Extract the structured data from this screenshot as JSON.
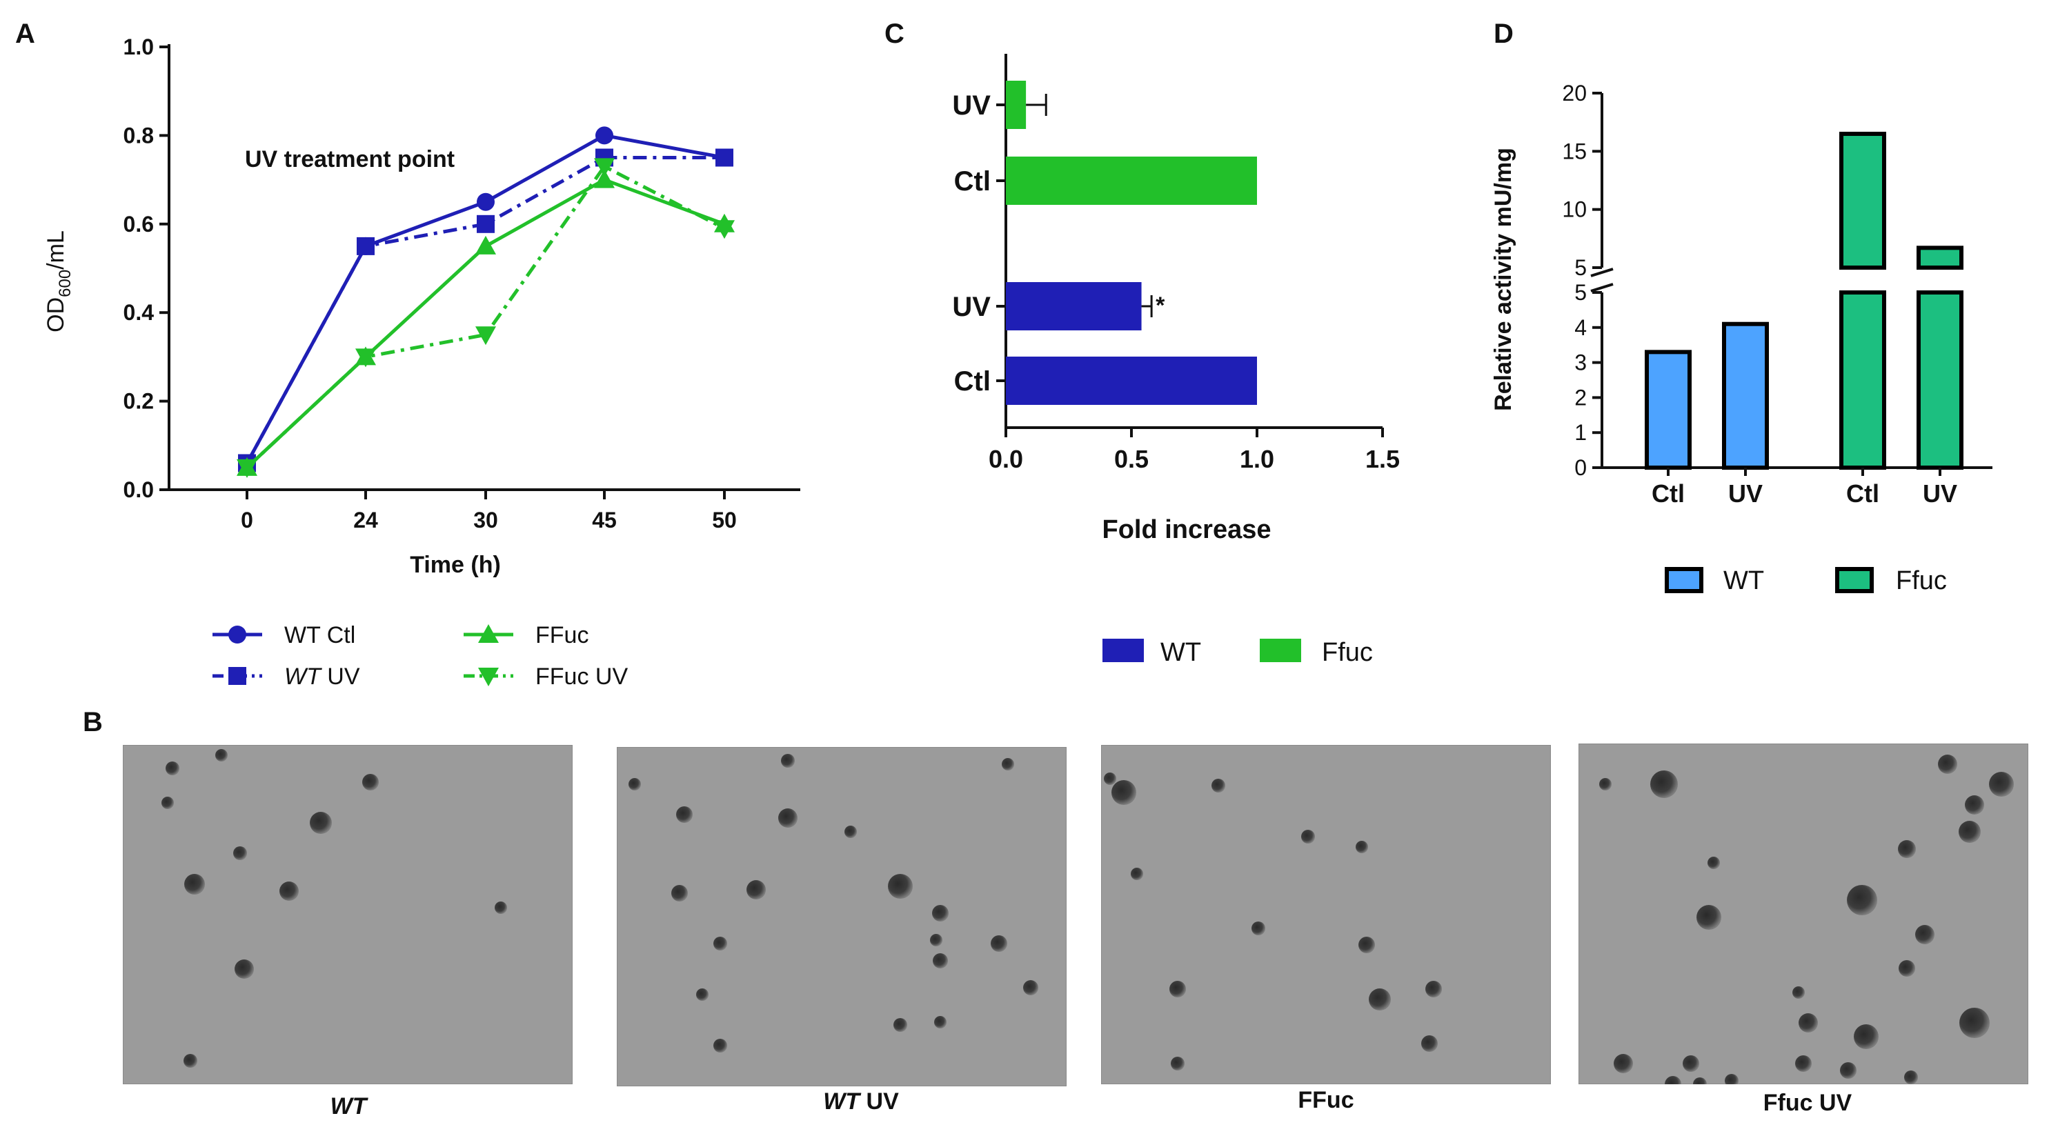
{
  "panels": {
    "A": "A",
    "B": "B",
    "C": "C",
    "D": "D"
  },
  "colors": {
    "wt_dark_blue": "#1f1fb5",
    "ffuc_green": "#22c02a",
    "d_wt_blue": "#4da3ff",
    "d_ffuc_green": "#1cbf80"
  },
  "chart_data": [
    {
      "id": "A",
      "type": "line",
      "title": "",
      "xlabel": "Time (h)",
      "ylabel_main": "OD",
      "ylabel_sub": "600",
      "ylabel_tail": "/mL",
      "annotation": "UV treatment point",
      "categories": [
        "0",
        "24",
        "30",
        "45",
        "50"
      ],
      "ylim": [
        0,
        1.0
      ],
      "yticks": [
        "0.0",
        "0.2",
        "0.4",
        "0.6",
        "0.8",
        "1.0"
      ],
      "series": [
        {
          "name": "WT Ctl",
          "values": [
            0.06,
            0.55,
            0.65,
            0.8,
            0.75
          ],
          "color": "#1f1fb5",
          "marker": "circle",
          "dash": "solid"
        },
        {
          "name": "WT UV",
          "name_italic": "WT",
          "name_rest": " UV",
          "values": [
            0.06,
            0.55,
            0.6,
            0.75,
            0.75
          ],
          "color": "#1f1fb5",
          "marker": "square",
          "dash": "dashdot"
        },
        {
          "name": "FFuc",
          "values": [
            0.05,
            0.3,
            0.55,
            0.7,
            0.6
          ],
          "color": "#22c02a",
          "marker": "triangle-up",
          "dash": "solid"
        },
        {
          "name": "FFuc UV",
          "values": [
            0.05,
            0.3,
            0.35,
            0.73,
            0.59
          ],
          "color": "#22c02a",
          "marker": "triangle-down",
          "dash": "dashdot"
        }
      ],
      "legend_position": "bottom"
    },
    {
      "id": "C",
      "type": "bar",
      "orientation": "horizontal",
      "xlabel": "Fold increase",
      "xlim": [
        0,
        1.5
      ],
      "xticks": [
        "0.0",
        "0.5",
        "1.0",
        "1.5"
      ],
      "bars": [
        {
          "label": "UV",
          "group": "Ffuc",
          "value": 0.08,
          "error": 0.08,
          "sig": ""
        },
        {
          "label": "Ctl",
          "group": "Ffuc",
          "value": 1.0,
          "error": 0,
          "sig": ""
        },
        {
          "label": "UV",
          "group": "WT",
          "value": 0.54,
          "error": 0.04,
          "sig": "*"
        },
        {
          "label": "Ctl",
          "group": "WT",
          "value": 1.0,
          "error": 0,
          "sig": ""
        }
      ],
      "legend": [
        {
          "name": "WT",
          "color": "#1f1fb5"
        },
        {
          "name": "Ffuc",
          "color": "#22c02a"
        }
      ],
      "legend_position": "bottom"
    },
    {
      "id": "D",
      "type": "bar",
      "ylabel": "Relative activity mU/mg",
      "axis_break": true,
      "lower_ylim": [
        0,
        5
      ],
      "upper_ylim": [
        5,
        20
      ],
      "lower_yticks": [
        "0",
        "1",
        "2",
        "3",
        "4",
        "5"
      ],
      "upper_yticks": [
        "5",
        "10",
        "15",
        "20"
      ],
      "categories": [
        "Ctl",
        "UV",
        "Ctl",
        "UV"
      ],
      "bars": [
        {
          "category": "Ctl",
          "group": "WT",
          "value": 3.3
        },
        {
          "category": "UV",
          "group": "WT",
          "value": 4.1
        },
        {
          "category": "Ctl",
          "group": "Ffuc",
          "value": 16.5
        },
        {
          "category": "UV",
          "group": "Ffuc",
          "value": 6.7
        }
      ],
      "legend": [
        {
          "name": "WT",
          "color": "#4da3ff"
        },
        {
          "name": "Ffuc",
          "color": "#1cbf80"
        }
      ],
      "legend_position": "bottom"
    }
  ],
  "micrographs": [
    {
      "caption": "WT",
      "caption_italic": "WT",
      "caption_rest": ""
    },
    {
      "caption": "WT  UV",
      "caption_italic": "WT",
      "caption_rest": "  UV"
    },
    {
      "caption": "FFuc",
      "caption_italic": "",
      "caption_rest": "FFuc"
    },
    {
      "caption": "Ffuc UV",
      "caption_italic": "",
      "caption_rest": "Ffuc UV"
    }
  ]
}
